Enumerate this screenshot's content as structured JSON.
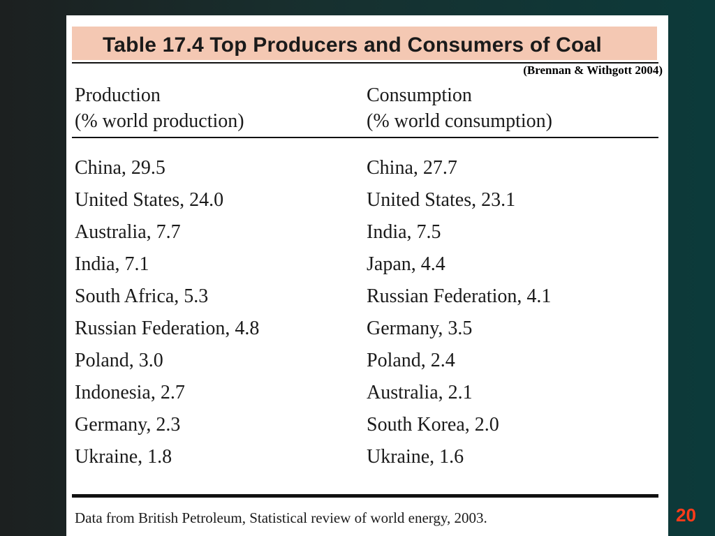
{
  "table": {
    "title": "Table 17.4 Top Producers and Consumers of Coal",
    "citation": "(Brennan & Withgott 2004)",
    "production_header": [
      "Production",
      "(% world production)"
    ],
    "consumption_header": [
      "Consumption",
      "(% world consumption)"
    ],
    "production": [
      "China, 29.5",
      "United States, 24.0",
      "Australia, 7.7",
      "India, 7.1",
      "South Africa, 5.3",
      "Russian Federation, 4.8",
      "Poland, 3.0",
      "Indonesia, 2.7",
      "Germany, 2.3",
      "Ukraine, 1.8"
    ],
    "consumption": [
      "China, 27.7",
      "United States, 23.1",
      "India, 7.5",
      "Japan, 4.4",
      "Russian Federation, 4.1",
      "Germany, 3.5",
      "Poland, 2.4",
      "Australia, 2.1",
      "South Korea, 2.0",
      "Ukraine, 1.6"
    ],
    "footnote": "Data from British Petroleum, Statistical review of world energy, 2003."
  },
  "slide": {
    "number": "20"
  },
  "colors": {
    "title_band": "#f4c8b3",
    "slide_number": "#ff3b1a",
    "background_dark": "#0c3a3a"
  }
}
